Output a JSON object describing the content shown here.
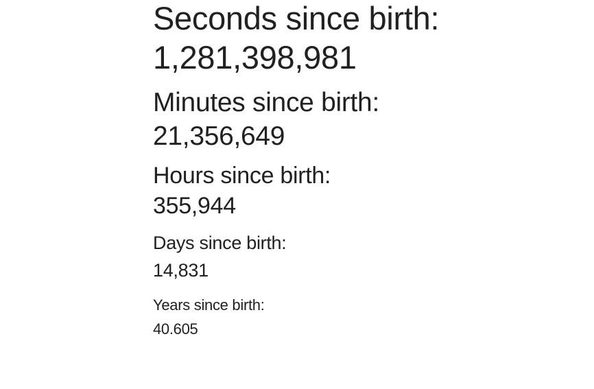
{
  "stats": [
    {
      "label": "Seconds since birth:",
      "value": "1,281,398,981"
    },
    {
      "label": "Minutes since birth:",
      "value": "21,356,649"
    },
    {
      "label": "Hours since birth:",
      "value": "355,944"
    },
    {
      "label": "Days since birth:",
      "value": "14,831"
    },
    {
      "label": "Years since birth:",
      "value": "40.605"
    }
  ]
}
